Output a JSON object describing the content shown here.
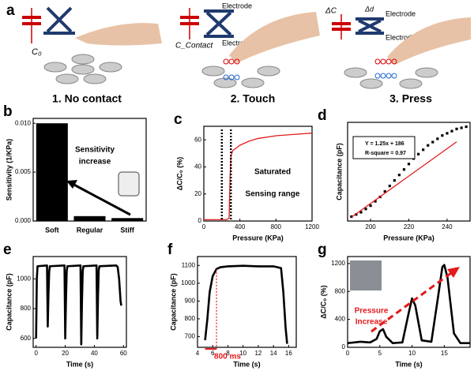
{
  "illustration": {
    "panel": "a",
    "c0": "C₀",
    "electrode_top": "Electrode",
    "electrode_bottom": "Electrode",
    "c_contact": "C_Contact",
    "delta_c": "ΔC",
    "delta_d": "Δd",
    "electrode_top_3": "Electrode",
    "electrode_bottom_3": "Electrode",
    "step1": "1. No contact",
    "step2": "2. Touch",
    "step3": "3. Press"
  },
  "chart_data": [
    {
      "type": "bar",
      "panel": "b",
      "ylabel": "Sensitivity (1/KPa)",
      "categories": [
        "Soft",
        "Regular",
        "Stiff"
      ],
      "values": [
        0.01,
        0.0005,
        0.0003
      ],
      "color": "#000000",
      "ylim": [
        0,
        0.0105
      ],
      "yticks": [
        {
          "value": 0,
          "label": "0.000"
        },
        {
          "value": 0.005,
          "label": "0.005"
        },
        {
          "value": 0.01,
          "label": "0.010"
        }
      ],
      "annotations": [
        "Sensitivity",
        "increase"
      ]
    },
    {
      "type": "line",
      "panel": "c",
      "xlabel": "Pressure (KPa)",
      "ylabel": "ΔC/C₀ (%)",
      "x": [
        0,
        250,
        280,
        290,
        300,
        320,
        400,
        500,
        600,
        800,
        1000,
        1200
      ],
      "values": [
        1,
        1,
        2,
        30,
        48,
        52,
        56,
        59,
        61,
        63,
        64,
        65
      ],
      "color": "#e31a1c",
      "xlim": [
        0,
        1200
      ],
      "xticks": [
        0,
        400,
        800,
        1200
      ],
      "ylim": [
        0,
        70
      ],
      "yticks": [
        0,
        20,
        40,
        60
      ],
      "markers_x": [
        200,
        300
      ],
      "annotations": [
        "Saturated",
        "Sensing range"
      ]
    },
    {
      "type": "scatter",
      "panel": "d",
      "xlabel": "Pressure (KPa)",
      "ylabel": "Capacitance (pF)",
      "x": [
        190,
        192.5,
        195,
        197.5,
        200,
        202.5,
        205,
        207.5,
        210,
        212.5,
        215,
        217.5,
        220,
        222.5,
        225,
        227.5,
        230,
        232.5,
        235,
        237.5,
        240,
        242.5,
        245,
        247.5,
        250
      ],
      "values": [
        424,
        426,
        428,
        431,
        434,
        438,
        442,
        447,
        452,
        457,
        462,
        467,
        472,
        477,
        481,
        485,
        489,
        492,
        495,
        498,
        500,
        502,
        504,
        505,
        506
      ],
      "color": "#000000",
      "fit": {
        "x": [
          190,
          245
        ],
        "values": [
          423.5,
          492.25
        ],
        "color": "#e31a1c"
      },
      "xlim": [
        188,
        252
      ],
      "xticks": [
        200,
        220,
        240
      ],
      "ylim": [
        420,
        510
      ],
      "annotations": [
        "Y = 1.25x + 186",
        "R-square = 0.97"
      ]
    },
    {
      "type": "line",
      "panel": "e",
      "xlabel": "Time (s)",
      "ylabel": "Capacitance (pF)",
      "x": [
        0,
        0.5,
        1,
        7.5,
        8,
        8.5,
        9,
        9.5,
        19.5,
        20,
        20.5,
        21,
        21.5,
        30.5,
        31,
        31.5,
        32,
        32.5,
        41.5,
        42,
        42.5,
        43,
        43.5,
        55,
        56,
        57,
        58,
        58.5
      ],
      "values": [
        600,
        1000,
        1085,
        1090,
        680,
        900,
        1050,
        1085,
        1090,
        600,
        850,
        1050,
        1085,
        1090,
        560,
        850,
        1050,
        1085,
        1090,
        600,
        880,
        1060,
        1085,
        1090,
        1080,
        1000,
        850,
        820
      ],
      "color": "#000000",
      "xlim": [
        -2,
        62
      ],
      "xticks": [
        0,
        20,
        40,
        60
      ],
      "ylim": [
        540,
        1150
      ],
      "yticks": [
        600,
        800,
        1000
      ]
    },
    {
      "type": "line",
      "panel": "f",
      "xlabel": "Time (s)",
      "ylabel": "Capacitance (pF)",
      "x": [
        5,
        5.3,
        5.6,
        6,
        6.5,
        7,
        8,
        10,
        12,
        14,
        15,
        15.3,
        15.6,
        15.8
      ],
      "values": [
        680,
        800,
        950,
        1040,
        1080,
        1090,
        1095,
        1098,
        1095,
        1095,
        1085,
        950,
        750,
        660
      ],
      "color": "#000000",
      "xlim": [
        4,
        17
      ],
      "xticks": [
        4,
        6,
        8,
        10,
        12,
        14,
        16
      ],
      "ylim": [
        640,
        1150
      ],
      "yticks": [
        700,
        800,
        900,
        1000,
        1100
      ],
      "markers_x": [
        6.5
      ],
      "annotations": [
        "800 ms"
      ]
    },
    {
      "type": "line",
      "panel": "g",
      "xlabel": "Time (s)",
      "ylabel": "ΔC/C₀ (%)",
      "x": [
        0,
        2,
        3.5,
        4.5,
        5,
        5.5,
        6,
        7,
        8.5,
        9.5,
        10,
        10.5,
        11.5,
        13,
        14,
        14.7,
        15,
        15.5,
        16.5,
        17.5,
        19
      ],
      "values": [
        60,
        80,
        70,
        120,
        230,
        260,
        150,
        60,
        70,
        500,
        700,
        600,
        100,
        80,
        700,
        1150,
        1180,
        1000,
        200,
        60,
        60
      ],
      "color": "#000000",
      "xlim": [
        0,
        19
      ],
      "xticks": [
        0,
        5,
        10,
        15
      ],
      "ylim": [
        0,
        1300
      ],
      "yticks": [
        0,
        400,
        800,
        1200
      ],
      "annotations": [
        "Pressure",
        "Increase"
      ]
    }
  ]
}
